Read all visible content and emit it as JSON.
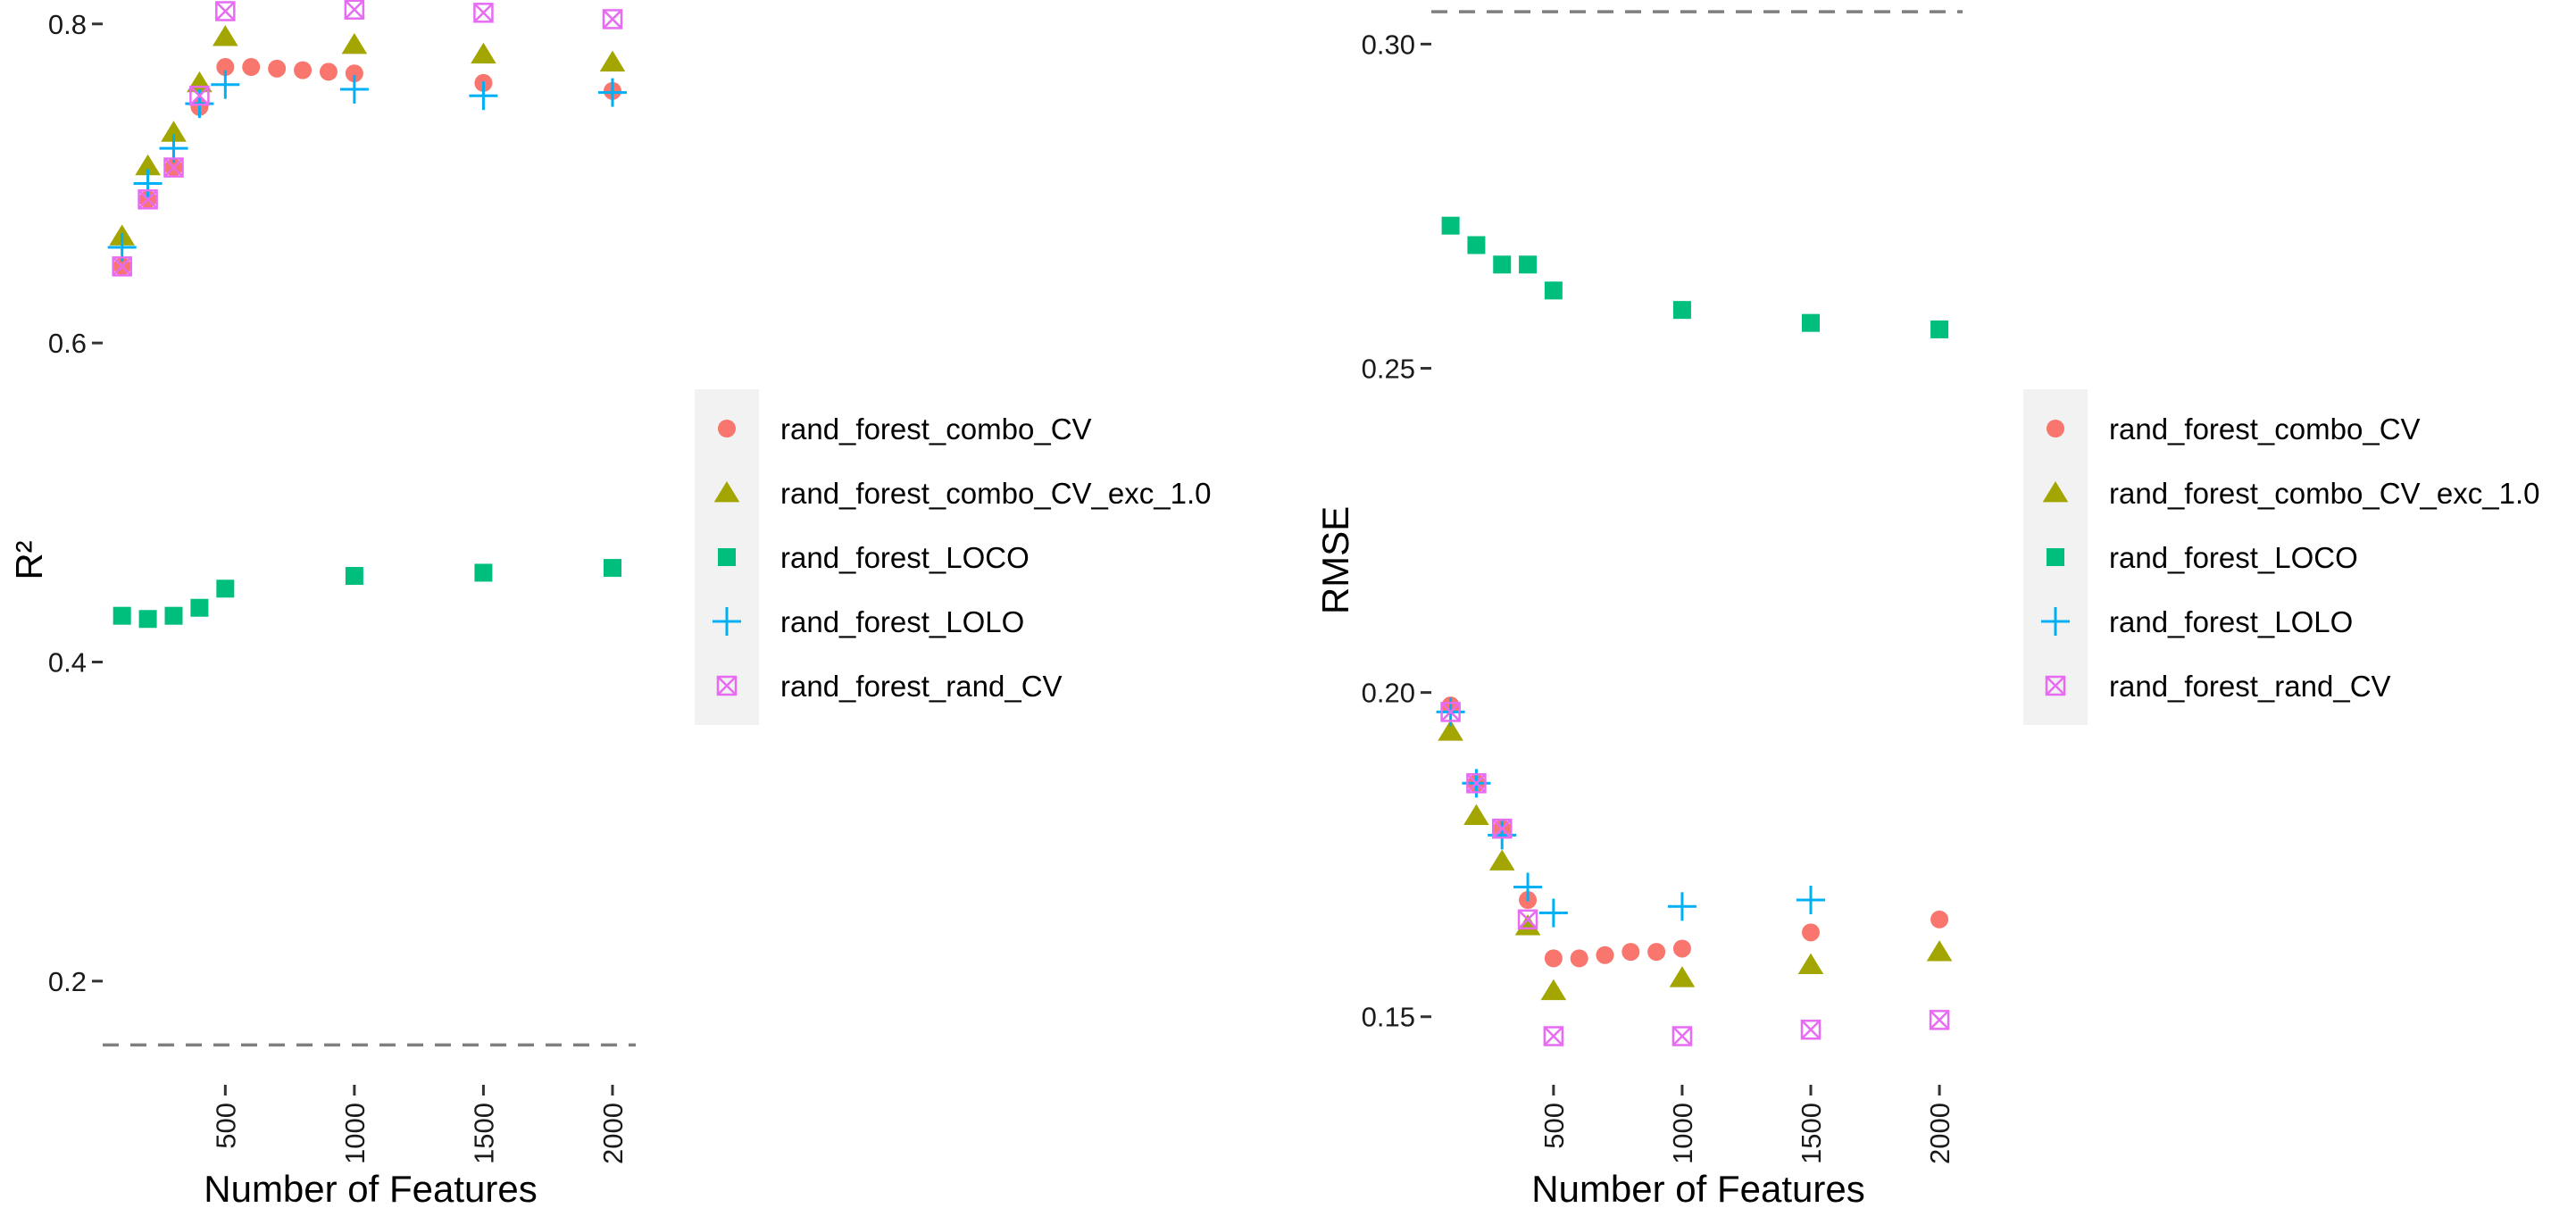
{
  "colors": {
    "rand_forest_combo_CV": "#F8766D",
    "rand_forest_combo_CV_exc_1.0": "#A3A500",
    "rand_forest_LOCO": "#00BF7D",
    "rand_forest_LOLO": "#00B0F6",
    "rand_forest_rand_CV": "#E76BF3",
    "reference_line": "#7f7f7f",
    "legend_background": "#f2f2f2"
  },
  "chart_data": [
    {
      "type": "scatter",
      "xlabel": "Number of Features",
      "ylabel": "R²",
      "xlim": [
        25,
        2090
      ],
      "ylim": [
        0.135,
        0.815
      ],
      "xticks": [
        500,
        1000,
        1500,
        2000
      ],
      "yticks": [
        0.2,
        0.4,
        0.6,
        0.8
      ],
      "reference_line": 0.16,
      "grid": false,
      "legend_position": "right",
      "series": [
        {
          "name": "rand_forest_combo_CV",
          "shape": "circle",
          "x": [
            100,
            200,
            300,
            400,
            500,
            600,
            700,
            800,
            900,
            1000,
            1500,
            2000
          ],
          "y": [
            0.648,
            0.69,
            0.71,
            0.748,
            0.773,
            0.773,
            0.772,
            0.771,
            0.77,
            0.769,
            0.763,
            0.758
          ]
        },
        {
          "name": "rand_forest_combo_CV_exc_1.0",
          "shape": "triangle",
          "x": [
            100,
            200,
            300,
            400,
            500,
            1000,
            1500,
            2000
          ],
          "y": [
            0.667,
            0.711,
            0.732,
            0.763,
            0.792,
            0.787,
            0.781,
            0.776
          ]
        },
        {
          "name": "rand_forest_LOCO",
          "shape": "square",
          "x": [
            100,
            200,
            300,
            400,
            500,
            1000,
            1500,
            2000
          ],
          "y": [
            0.429,
            0.427,
            0.429,
            0.434,
            0.446,
            0.454,
            0.456,
            0.459
          ]
        },
        {
          "name": "rand_forest_LOLO",
          "shape": "plus",
          "x": [
            100,
            200,
            300,
            400,
            500,
            1000,
            1500,
            2000
          ],
          "y": [
            0.66,
            0.7,
            0.722,
            0.75,
            0.762,
            0.759,
            0.755,
            0.757
          ]
        },
        {
          "name": "rand_forest_rand_CV",
          "shape": "boxx",
          "x": [
            100,
            200,
            300,
            400,
            500,
            1000,
            1500,
            2000
          ],
          "y": [
            0.648,
            0.69,
            0.71,
            0.755,
            0.808,
            0.809,
            0.807,
            0.803
          ]
        }
      ]
    },
    {
      "type": "scatter",
      "xlabel": "Number of Features",
      "ylabel": "RMSE",
      "xlim": [
        25,
        2090
      ],
      "ylim": [
        0.1395,
        0.3068
      ],
      "xticks": [
        500,
        1000,
        1500,
        2000
      ],
      "yticks": [
        0.15,
        0.2,
        0.25,
        0.3
      ],
      "reference_line": 0.305,
      "grid": false,
      "legend_position": "right",
      "series": [
        {
          "name": "rand_forest_combo_CV",
          "shape": "circle",
          "x": [
            100,
            200,
            300,
            400,
            500,
            600,
            700,
            800,
            900,
            1000,
            1500,
            2000
          ],
          "y": [
            0.198,
            0.186,
            0.179,
            0.168,
            0.159,
            0.159,
            0.1595,
            0.16,
            0.16,
            0.1605,
            0.163,
            0.165
          ]
        },
        {
          "name": "rand_forest_combo_CV_exc_1.0",
          "shape": "triangle",
          "x": [
            100,
            200,
            300,
            400,
            500,
            1000,
            1500,
            2000
          ],
          "y": [
            0.194,
            0.181,
            0.174,
            0.164,
            0.154,
            0.156,
            0.158,
            0.16
          ]
        },
        {
          "name": "rand_forest_LOCO",
          "shape": "square",
          "x": [
            100,
            200,
            300,
            400,
            500,
            1000,
            1500,
            2000
          ],
          "y": [
            0.272,
            0.269,
            0.266,
            0.266,
            0.262,
            0.259,
            0.257,
            0.256
          ]
        },
        {
          "name": "rand_forest_LOLO",
          "shape": "plus",
          "x": [
            100,
            200,
            300,
            400,
            500,
            1000,
            1500,
            2000
          ],
          "y": [
            0.197,
            0.186,
            0.178,
            0.17,
            0.166,
            0.167,
            0.168,
            null
          ]
        },
        {
          "name": "rand_forest_rand_CV",
          "shape": "boxx",
          "x": [
            100,
            200,
            300,
            400,
            500,
            1000,
            1500,
            2000
          ],
          "y": [
            0.197,
            0.186,
            0.179,
            0.165,
            0.147,
            0.147,
            0.148,
            0.1495
          ]
        }
      ]
    }
  ]
}
